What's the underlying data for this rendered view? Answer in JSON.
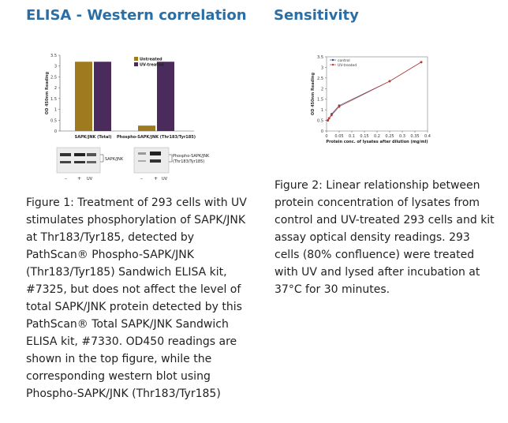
{
  "left": {
    "heading": "ELISA - Western correlation",
    "caption": "Figure 1: Treatment of 293 cells with UV stimulates phosphorylation of SAPK/JNK at Thr183/Tyr185, detected by PathScan® Phospho-SAPK/JNK (Thr183/Tyr185) Sandwich ELISA kit, #7325, but does not affect the level of total SAPK/JNK protein detected by this PathScan® Total SAPK/JNK Sandwich ELISA kit, #7330. OD450 readings are shown in the top figure, while the corresponding western blot using Phospho-SAPK/JNK (Thr183/Tyr185)"
  },
  "right": {
    "heading": "Sensitivity",
    "caption": "Figure 2: Linear relationship between protein concentration of lysates from control and UV-treated 293 cells and kit assay optical density readings. 293 cells (80% confluence) were treated with UV and lysed after incubation at 37°C for 30 minutes."
  },
  "blot": {
    "left_label": "SAPK/JNK",
    "right_label_1": "Phospho-SAPK/JNK",
    "right_label_2": "(Thr183/Tyr185)",
    "lane_minus": "–",
    "lane_plus": "+",
    "lane_uv": "UV"
  },
  "colors": {
    "untreated": "#a07a1e",
    "uv": "#4b2a5c",
    "heading": "#2b6ea6",
    "line": "#c0392b"
  },
  "chart_data": [
    {
      "type": "bar",
      "ylabel": "OD 450nm Reading",
      "ylim": [
        0,
        3.5
      ],
      "yticks": [
        "3.5",
        "3",
        "2.5",
        "2",
        "1.5",
        "1",
        "0.5",
        "0"
      ],
      "categories": [
        "SAPK/JNK (Total)",
        "Phospho-SAPK/JNK (Thr183/Tyr185)"
      ],
      "series": [
        {
          "name": "Untreated",
          "values": [
            3.2,
            0.25
          ]
        },
        {
          "name": "UV-treated",
          "values": [
            3.2,
            3.2
          ]
        }
      ],
      "legend": "top-right"
    },
    {
      "type": "line",
      "ylabel": "OD 450nm Reading",
      "xlabel": "Protein conc. of lysates after dilution (mg/ml)",
      "xlim": [
        0,
        0.4
      ],
      "ylim": [
        0,
        3.5
      ],
      "xticks": [
        "0",
        "0.05",
        "0.1",
        "0.15",
        "0.2",
        "0.25",
        "0.3",
        "0.35",
        "0.4"
      ],
      "yticks": [
        "3.5",
        "3",
        "2.5",
        "2",
        "1.5",
        "1",
        "0.5",
        "0"
      ],
      "series": [
        {
          "name": "control",
          "x": [
            0.005,
            0.01,
            0.02,
            0.05,
            0.25,
            0.375
          ],
          "y": [
            0.5,
            0.6,
            0.8,
            1.2,
            2.35,
            3.25
          ]
        },
        {
          "name": "UV-treated",
          "x": [
            0.005,
            0.01,
            0.02,
            0.05,
            0.25,
            0.375
          ],
          "y": [
            0.5,
            0.6,
            0.75,
            1.15,
            2.35,
            3.25
          ]
        }
      ],
      "legend": "top-left"
    }
  ]
}
